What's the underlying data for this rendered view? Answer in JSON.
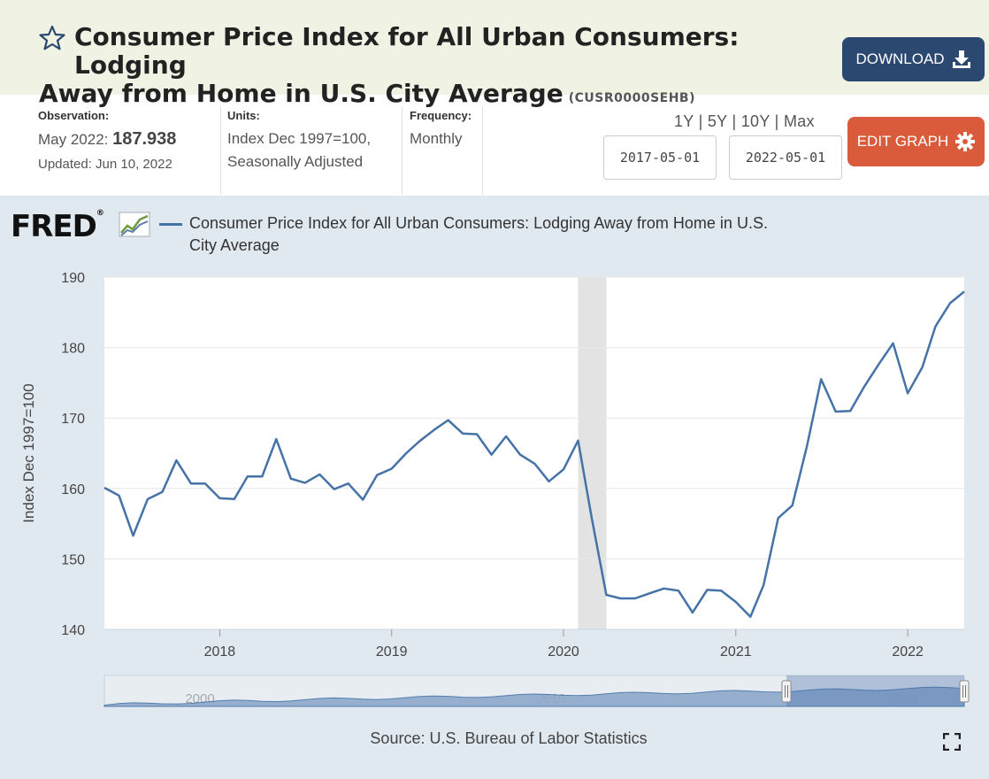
{
  "header": {
    "title_line1": "Consumer Price Index for All Urban Consumers: Lodging",
    "title_line2": "Away from Home in U.S. City Average",
    "series_id": "(CUSR0000SEHB)",
    "download_label": "DOWNLOAD"
  },
  "meta": {
    "observation_label": "Observation:",
    "observation_date": "May 2022:",
    "observation_value": "187.938",
    "updated": "Updated: Jun 10, 2022",
    "units_label": "Units:",
    "units_line1": "Index Dec 1997=100,",
    "units_line2": "Seasonally Adjusted",
    "frequency_label": "Frequency:",
    "frequency_value": "Monthly"
  },
  "range": {
    "links": [
      "1Y",
      "5Y",
      "10Y",
      "Max"
    ],
    "start_date": "2017-05-01",
    "end_date": "2022-05-01",
    "edit_label": "EDIT GRAPH"
  },
  "chart": {
    "logo": "FRED",
    "legend_line1": "Consumer Price Index for All Urban Consumers: Lodging Away from Home in U.S.",
    "legend_line2": "City Average",
    "source": "Source: U.S. Bureau of Labor Statistics",
    "navigator_labels": [
      "2000",
      "2010",
      "2020"
    ]
  },
  "colors": {
    "line": "#4572a7",
    "recession": "#e3e3e3",
    "download_button": "#2b4870",
    "edit_button": "#d95b3c",
    "header_bg": "#f0f2e4",
    "chart_bg": "#e1e9f0"
  },
  "chart_data": {
    "type": "line",
    "title": "",
    "ylabel": "Index Dec 1997=100",
    "xlabel": "",
    "ylim": [
      140,
      190
    ],
    "yticks": [
      140,
      150,
      160,
      170,
      180,
      190
    ],
    "xticks": [
      "2018",
      "2019",
      "2020",
      "2021",
      "2022"
    ],
    "recession": [
      "2020-02-01",
      "2020-04-01"
    ],
    "grid": true,
    "legend_position": "top",
    "series": [
      {
        "name": "Consumer Price Index for All Urban Consumers: Lodging Away from Home in U.S. City Average",
        "x": [
          "2017-05-01",
          "2017-06-01",
          "2017-07-01",
          "2017-08-01",
          "2017-09-01",
          "2017-10-01",
          "2017-11-01",
          "2017-12-01",
          "2018-01-01",
          "2018-02-01",
          "2018-03-01",
          "2018-04-01",
          "2018-05-01",
          "2018-06-01",
          "2018-07-01",
          "2018-08-01",
          "2018-09-01",
          "2018-10-01",
          "2018-11-01",
          "2018-12-01",
          "2019-01-01",
          "2019-02-01",
          "2019-03-01",
          "2019-04-01",
          "2019-05-01",
          "2019-06-01",
          "2019-07-01",
          "2019-08-01",
          "2019-09-01",
          "2019-10-01",
          "2019-11-01",
          "2019-12-01",
          "2020-01-01",
          "2020-02-01",
          "2020-03-01",
          "2020-04-01",
          "2020-05-01",
          "2020-06-01",
          "2020-07-01",
          "2020-08-01",
          "2020-09-01",
          "2020-10-01",
          "2020-11-01",
          "2020-12-01",
          "2021-01-01",
          "2021-02-01",
          "2021-03-01",
          "2021-04-01",
          "2021-05-01",
          "2021-06-01",
          "2021-07-01",
          "2021-08-01",
          "2021-09-01",
          "2021-10-01",
          "2021-11-01",
          "2021-12-01",
          "2022-01-01",
          "2022-02-01",
          "2022-03-01",
          "2022-04-01",
          "2022-05-01"
        ],
        "values": [
          160.1,
          159.0,
          153.3,
          158.5,
          159.5,
          164.0,
          160.7,
          160.7,
          158.6,
          158.5,
          161.7,
          161.7,
          167.0,
          161.4,
          160.8,
          162.0,
          159.9,
          160.7,
          158.4,
          161.9,
          162.8,
          165.0,
          166.7,
          168.3,
          169.7,
          167.8,
          167.7,
          164.8,
          167.4,
          164.8,
          163.5,
          161.0,
          162.7,
          166.8,
          155.8,
          144.9,
          144.4,
          144.4,
          145.1,
          145.8,
          145.5,
          142.4,
          145.6,
          145.5,
          143.9,
          141.8,
          146.3,
          155.8,
          157.6,
          166.0,
          175.5,
          170.9,
          171.0,
          174.5,
          177.7,
          180.6,
          173.5,
          177.2,
          183.0,
          186.3,
          187.938
        ]
      }
    ]
  }
}
